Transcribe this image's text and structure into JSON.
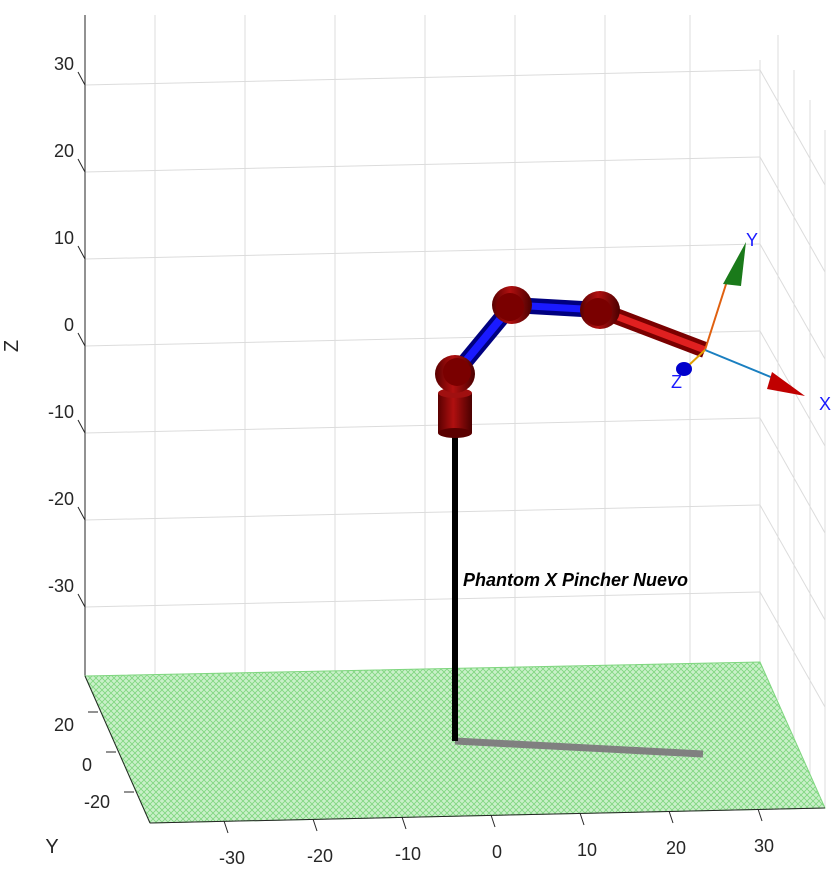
{
  "chart_data": {
    "type": "3d-robot-plot",
    "robot_name": "Phantom X Pincher Nuevo",
    "z_axis": {
      "label": "Z",
      "ticks": [
        "30",
        "20",
        "10",
        "0",
        "-10",
        "-20",
        "-30"
      ]
    },
    "y_axis": {
      "label": "Y",
      "ticks": [
        "20",
        "0",
        "-20"
      ]
    },
    "x_axis": {
      "label": "X",
      "ticks": [
        "-30",
        "-20",
        "-10",
        "0",
        "10",
        "20",
        "30"
      ]
    },
    "end_effector_frame": {
      "x_label": "X",
      "y_label": "Y",
      "z_label": "Z"
    },
    "colors": {
      "floor": "#9be39b",
      "joints": "#8b0000",
      "links_blue": "#0000cc",
      "links_red": "#c00000",
      "frame_x": "#c00000",
      "frame_y": "#1a7a1a",
      "frame_z": "#0000cc"
    },
    "grid": true
  }
}
